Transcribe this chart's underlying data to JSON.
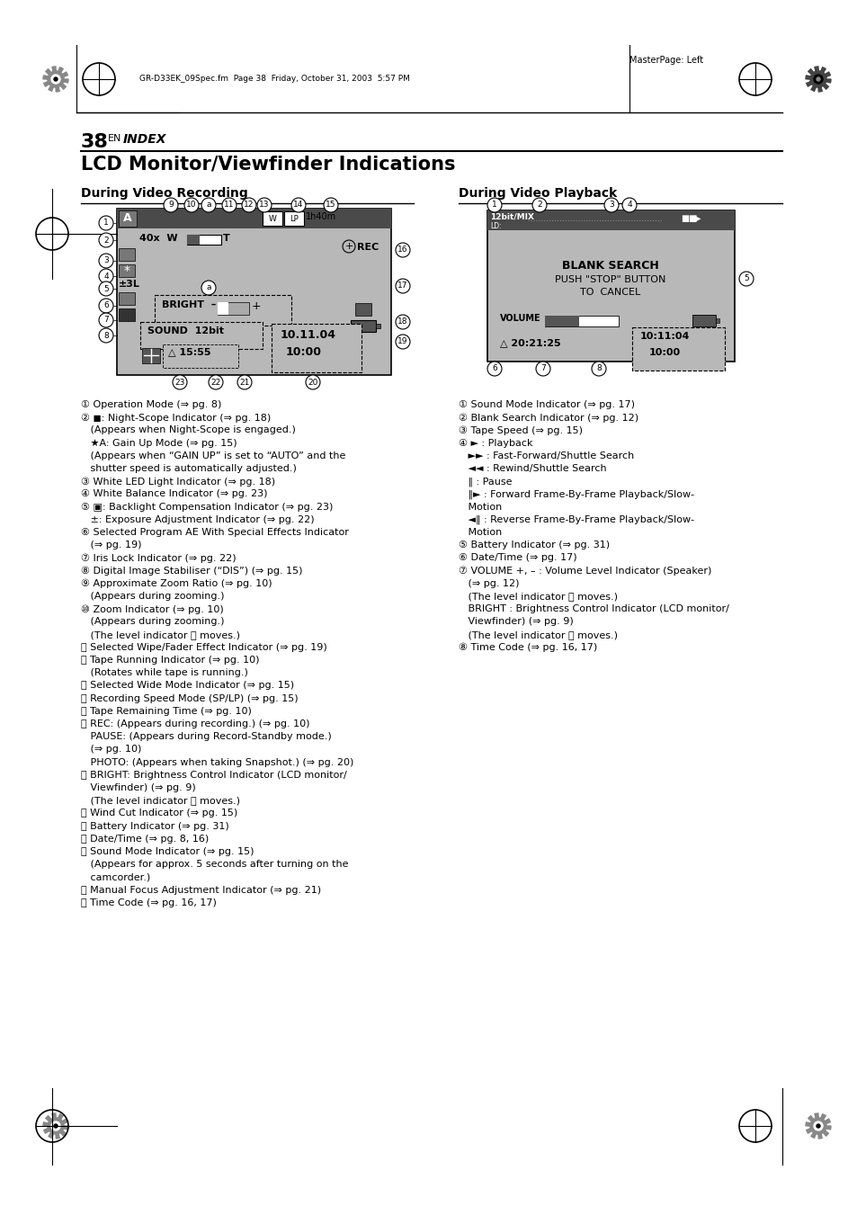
{
  "page_num": "38",
  "page_lang": "EN",
  "page_title_italic": "INDEX",
  "main_title": "LCD Monitor/Viewfinder Indications",
  "section1_title": "During Video Recording",
  "section2_title": "During Video Playback",
  "header_text": "GR-D33EK_09Spec.fm  Page 38  Friday, October 31, 2003  5:57 PM",
  "masterpage_text": "MasterPage: Left",
  "bg_color": "#ffffff",
  "text_color": "#000000",
  "diagram_bg": "#b8b8b8",
  "diagram_dark": "#555555",
  "diagram_border": "#000000"
}
